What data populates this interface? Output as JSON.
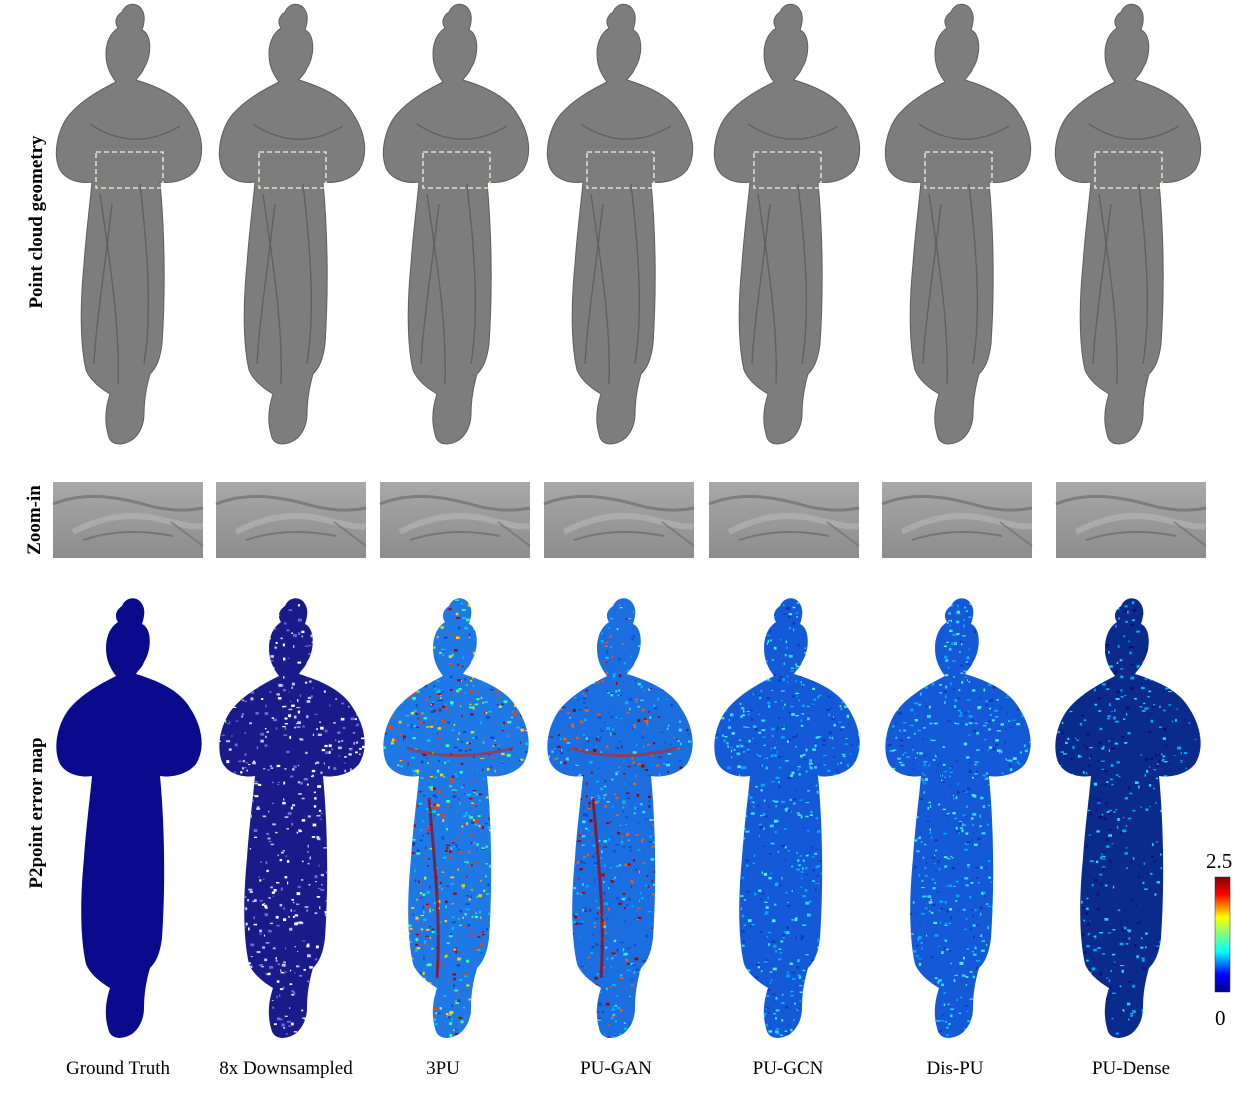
{
  "row_labels": {
    "geometry": "Point cloud geometry",
    "zoom": "Zoom-in",
    "error": "P2point error map"
  },
  "columns": [
    {
      "label": "Ground Truth",
      "error_style": "flat"
    },
    {
      "label": "8x Downsampled",
      "error_style": "sparse"
    },
    {
      "label": "3PU",
      "error_style": "high"
    },
    {
      "label": "PU-GAN",
      "error_style": "high-streaks"
    },
    {
      "label": "PU-GCN",
      "error_style": "medium"
    },
    {
      "label": "Dis-PU",
      "error_style": "medium"
    },
    {
      "label": "PU-Dense",
      "error_style": "low"
    }
  ],
  "colorbar": {
    "max": "2.5",
    "min": "0",
    "colormap": "jet"
  },
  "colors": {
    "geometry_gray": "#7d7d7d",
    "zoom_gray": "#9a9a9a",
    "error_base": "#0a0a8c",
    "highlight_box": "#f2f2e0"
  }
}
